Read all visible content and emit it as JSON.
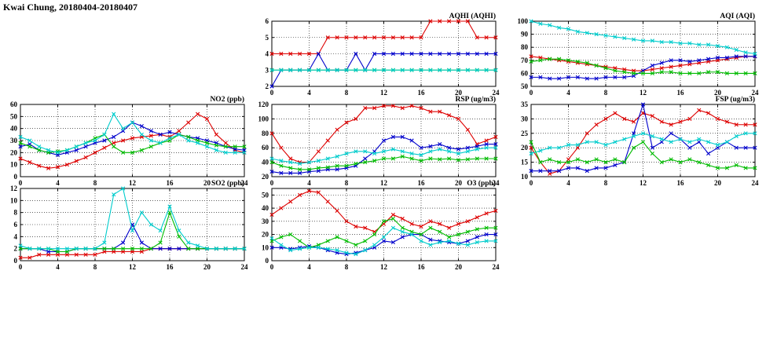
{
  "title": "Kwai Chung, 20180404-20180407",
  "colors": {
    "red": "#dd0000",
    "blue": "#0000cc",
    "green": "#00bb00",
    "cyan": "#00cccc"
  },
  "chart_data": [
    {
      "id": "aqhi",
      "type": "line",
      "title": "AQHI (AQHI)",
      "x_ticks": [
        0,
        4,
        8,
        12,
        16,
        20,
        24
      ],
      "xlim": [
        0,
        24
      ],
      "y_ticks": [
        2,
        3,
        4,
        5,
        6
      ],
      "ylim": [
        2,
        6
      ],
      "grid": true,
      "legend": "none",
      "series": [
        {
          "name": "red",
          "color": "#dd0000",
          "values": [
            4,
            4,
            4,
            4,
            4,
            4,
            5,
            5,
            5,
            5,
            5,
            5,
            5,
            5,
            5,
            5,
            5,
            6,
            6,
            6,
            6,
            6,
            5,
            5,
            5
          ]
        },
        {
          "name": "blue",
          "color": "#0000cc",
          "values": [
            2,
            3,
            3,
            3,
            3,
            4,
            3,
            3,
            3,
            4,
            3,
            4,
            4,
            4,
            4,
            4,
            4,
            4,
            4,
            4,
            4,
            4,
            4,
            4,
            4
          ]
        },
        {
          "name": "green",
          "color": "#00bb00",
          "values": [
            3,
            3,
            3,
            3,
            3,
            3,
            3,
            3,
            3,
            3,
            3,
            3,
            3,
            3,
            3,
            3,
            3,
            3,
            3,
            3,
            3,
            3,
            3,
            3,
            3
          ]
        },
        {
          "name": "cyan",
          "color": "#00cccc",
          "values": [
            3,
            3,
            3,
            3,
            3,
            3,
            3,
            3,
            3,
            3,
            3,
            3,
            3,
            3,
            3,
            3,
            3,
            3,
            3,
            3,
            3,
            3,
            3,
            3,
            3
          ]
        }
      ]
    },
    {
      "id": "aqi",
      "type": "line",
      "title": "AQI (AQI)",
      "x_ticks": [
        0,
        4,
        8,
        12,
        16,
        20,
        24
      ],
      "xlim": [
        0,
        24
      ],
      "y_ticks": [
        50,
        60,
        70,
        80,
        90,
        100
      ],
      "ylim": [
        50,
        100
      ],
      "grid": true,
      "legend": "none",
      "series": [
        {
          "name": "red",
          "color": "#dd0000",
          "values": [
            73,
            72,
            71,
            70,
            69,
            68,
            67,
            66,
            65,
            64,
            63,
            62,
            62,
            63,
            64,
            65,
            66,
            67,
            68,
            69,
            70,
            71,
            72,
            73,
            73
          ]
        },
        {
          "name": "blue",
          "color": "#0000cc",
          "values": [
            57,
            57,
            56,
            56,
            57,
            57,
            56,
            56,
            57,
            57,
            57,
            58,
            62,
            66,
            68,
            70,
            70,
            69,
            70,
            71,
            72,
            72,
            73,
            73,
            73
          ]
        },
        {
          "name": "green",
          "color": "#00bb00",
          "values": [
            69,
            70,
            71,
            71,
            70,
            69,
            68,
            66,
            64,
            62,
            61,
            60,
            60,
            60,
            61,
            61,
            60,
            60,
            60,
            61,
            61,
            60,
            60,
            60,
            60
          ]
        },
        {
          "name": "cyan",
          "color": "#00cccc",
          "values": [
            100,
            98,
            97,
            95,
            94,
            92,
            91,
            90,
            89,
            88,
            87,
            86,
            85,
            85,
            84,
            84,
            83,
            83,
            82,
            82,
            81,
            80,
            78,
            76,
            75
          ]
        }
      ]
    },
    {
      "id": "no2",
      "type": "line",
      "title": "NO2 (ppb)",
      "x_ticks": [
        0,
        4,
        8,
        12,
        16,
        20,
        24
      ],
      "xlim": [
        0,
        24
      ],
      "y_ticks": [
        0,
        10,
        20,
        30,
        40,
        50,
        60
      ],
      "ylim": [
        0,
        60
      ],
      "grid": true,
      "legend": "none",
      "series": [
        {
          "name": "red",
          "color": "#dd0000",
          "values": [
            15,
            12,
            9,
            7,
            8,
            10,
            13,
            16,
            20,
            24,
            28,
            30,
            32,
            33,
            34,
            35,
            33,
            38,
            45,
            52,
            48,
            35,
            28,
            22,
            20
          ]
        },
        {
          "name": "blue",
          "color": "#0000cc",
          "values": [
            25,
            27,
            22,
            20,
            18,
            20,
            22,
            25,
            28,
            30,
            33,
            38,
            45,
            42,
            38,
            35,
            37,
            35,
            33,
            32,
            30,
            28,
            25,
            23,
            22
          ]
        },
        {
          "name": "green",
          "color": "#00bb00",
          "values": [
            28,
            25,
            22,
            20,
            21,
            22,
            25,
            28,
            32,
            35,
            25,
            20,
            20,
            22,
            25,
            28,
            30,
            35,
            33,
            30,
            28,
            26,
            25,
            25,
            25
          ]
        },
        {
          "name": "cyan",
          "color": "#00cccc",
          "values": [
            33,
            30,
            25,
            22,
            20,
            22,
            25,
            28,
            30,
            35,
            52,
            40,
            45,
            35,
            30,
            28,
            32,
            35,
            30,
            28,
            25,
            22,
            20,
            20,
            20
          ]
        }
      ]
    },
    {
      "id": "rsp",
      "type": "line",
      "title": "RSP (ug/m3)",
      "x_ticks": [
        0,
        4,
        8,
        12,
        16,
        20,
        24
      ],
      "xlim": [
        0,
        24
      ],
      "y_ticks": [
        20,
        40,
        60,
        80,
        100,
        120
      ],
      "ylim": [
        20,
        120
      ],
      "grid": true,
      "legend": "none",
      "series": [
        {
          "name": "red",
          "color": "#dd0000",
          "values": [
            80,
            60,
            45,
            40,
            40,
            55,
            70,
            85,
            95,
            100,
            115,
            115,
            118,
            118,
            115,
            118,
            115,
            110,
            110,
            105,
            100,
            85,
            65,
            70,
            75
          ]
        },
        {
          "name": "blue",
          "color": "#0000cc",
          "values": [
            27,
            25,
            25,
            25,
            27,
            28,
            30,
            30,
            32,
            35,
            45,
            55,
            70,
            75,
            75,
            70,
            60,
            62,
            65,
            60,
            58,
            60,
            62,
            65,
            65
          ]
        },
        {
          "name": "green",
          "color": "#00bb00",
          "values": [
            40,
            35,
            32,
            30,
            30,
            32,
            33,
            35,
            35,
            38,
            40,
            42,
            45,
            45,
            48,
            45,
            42,
            45,
            44,
            45,
            43,
            44,
            45,
            45,
            45
          ]
        },
        {
          "name": "cyan",
          "color": "#00cccc",
          "values": [
            45,
            42,
            40,
            38,
            40,
            42,
            45,
            48,
            52,
            55,
            55,
            52,
            55,
            58,
            55,
            52,
            50,
            55,
            58,
            55,
            52,
            55,
            58,
            60,
            60
          ]
        }
      ]
    },
    {
      "id": "fsp",
      "type": "line",
      "title": "FSP (ug/m3)",
      "x_ticks": [
        0,
        4,
        8,
        12,
        16,
        20,
        24
      ],
      "xlim": [
        0,
        24
      ],
      "y_ticks": [
        10,
        15,
        20,
        25,
        30,
        35
      ],
      "ylim": [
        10,
        35
      ],
      "grid": true,
      "legend": "none",
      "series": [
        {
          "name": "red",
          "color": "#dd0000",
          "values": [
            20,
            15,
            11,
            12,
            16,
            20,
            25,
            28,
            30,
            32,
            30,
            29,
            32,
            31,
            29,
            28,
            29,
            30,
            33,
            32,
            30,
            29,
            28,
            28,
            28
          ]
        },
        {
          "name": "blue",
          "color": "#0000cc",
          "values": [
            12,
            12,
            12,
            12,
            13,
            13,
            12,
            13,
            13,
            14,
            15,
            25,
            35,
            20,
            22,
            25,
            23,
            20,
            22,
            18,
            20,
            22,
            20,
            20,
            20
          ]
        },
        {
          "name": "green",
          "color": "#00bb00",
          "values": [
            22,
            15,
            16,
            15,
            15,
            16,
            15,
            16,
            15,
            16,
            15,
            20,
            22,
            18,
            15,
            16,
            15,
            16,
            15,
            14,
            13,
            13,
            14,
            13,
            13
          ]
        },
        {
          "name": "cyan",
          "color": "#00cccc",
          "values": [
            18,
            19,
            20,
            20,
            21,
            21,
            22,
            22,
            21,
            22,
            23,
            24,
            25,
            24,
            23,
            22,
            23,
            22,
            23,
            22,
            21,
            22,
            24,
            25,
            25
          ]
        }
      ]
    },
    {
      "id": "so2",
      "type": "line",
      "title": "SO2 (ppb)",
      "x_ticks": [
        0,
        4,
        8,
        12,
        16,
        20,
        24
      ],
      "xlim": [
        0,
        24
      ],
      "y_ticks": [
        0,
        2,
        4,
        6,
        8,
        10,
        12
      ],
      "ylim": [
        0,
        12
      ],
      "grid": true,
      "legend": "none",
      "series": [
        {
          "name": "red",
          "color": "#dd0000",
          "values": [
            0.5,
            0.5,
            1,
            1,
            1,
            1,
            1,
            1,
            1,
            1.5,
            1.5,
            1.5,
            1.5,
            1.5,
            2,
            2,
            2,
            2,
            2,
            2,
            2,
            2,
            2,
            2,
            2
          ]
        },
        {
          "name": "blue",
          "color": "#0000cc",
          "values": [
            2,
            2,
            2,
            1.5,
            1.5,
            1.5,
            2,
            2,
            2,
            2,
            2,
            3,
            6,
            3,
            2,
            2,
            2,
            2,
            2,
            2,
            2,
            2,
            2,
            2,
            2
          ]
        },
        {
          "name": "green",
          "color": "#00bb00",
          "values": [
            2,
            2,
            2,
            2,
            1.5,
            1.5,
            2,
            2,
            2,
            2,
            2,
            2,
            2,
            2,
            2,
            3,
            8,
            4,
            2,
            2,
            2,
            2,
            2,
            2,
            2
          ]
        },
        {
          "name": "cyan",
          "color": "#00cccc",
          "values": [
            2.5,
            2,
            2,
            2,
            2,
            2,
            2,
            2,
            2,
            3,
            11,
            12,
            5,
            8,
            6,
            5,
            9,
            5,
            3,
            2.5,
            2,
            2,
            2,
            2,
            2
          ]
        }
      ]
    },
    {
      "id": "o3",
      "type": "line",
      "title": "O3 (ppb)",
      "x_ticks": [
        0,
        4,
        8,
        12,
        16,
        20,
        24
      ],
      "xlim": [
        0,
        24
      ],
      "y_ticks": [
        0,
        10,
        20,
        30,
        40,
        50
      ],
      "ylim": [
        0,
        55
      ],
      "grid": true,
      "legend": "none",
      "series": [
        {
          "name": "red",
          "color": "#dd0000",
          "values": [
            35,
            40,
            45,
            50,
            53,
            52,
            45,
            38,
            30,
            26,
            25,
            22,
            28,
            35,
            32,
            28,
            26,
            30,
            28,
            25,
            28,
            30,
            33,
            36,
            38
          ]
        },
        {
          "name": "blue",
          "color": "#0000cc",
          "values": [
            10,
            10,
            9,
            10,
            11,
            10,
            8,
            6,
            5,
            6,
            8,
            10,
            15,
            14,
            18,
            20,
            20,
            16,
            15,
            14,
            13,
            15,
            18,
            20,
            20
          ]
        },
        {
          "name": "green",
          "color": "#00bb00",
          "values": [
            15,
            18,
            20,
            15,
            10,
            12,
            15,
            18,
            15,
            12,
            15,
            20,
            30,
            32,
            25,
            22,
            20,
            25,
            22,
            18,
            20,
            22,
            24,
            25,
            25
          ]
        },
        {
          "name": "cyan",
          "color": "#00cccc",
          "values": [
            17,
            12,
            8,
            9,
            10,
            10,
            9,
            8,
            6,
            5,
            8,
            12,
            18,
            25,
            22,
            20,
            15,
            12,
            14,
            15,
            13,
            12,
            14,
            15,
            15
          ]
        }
      ]
    }
  ]
}
